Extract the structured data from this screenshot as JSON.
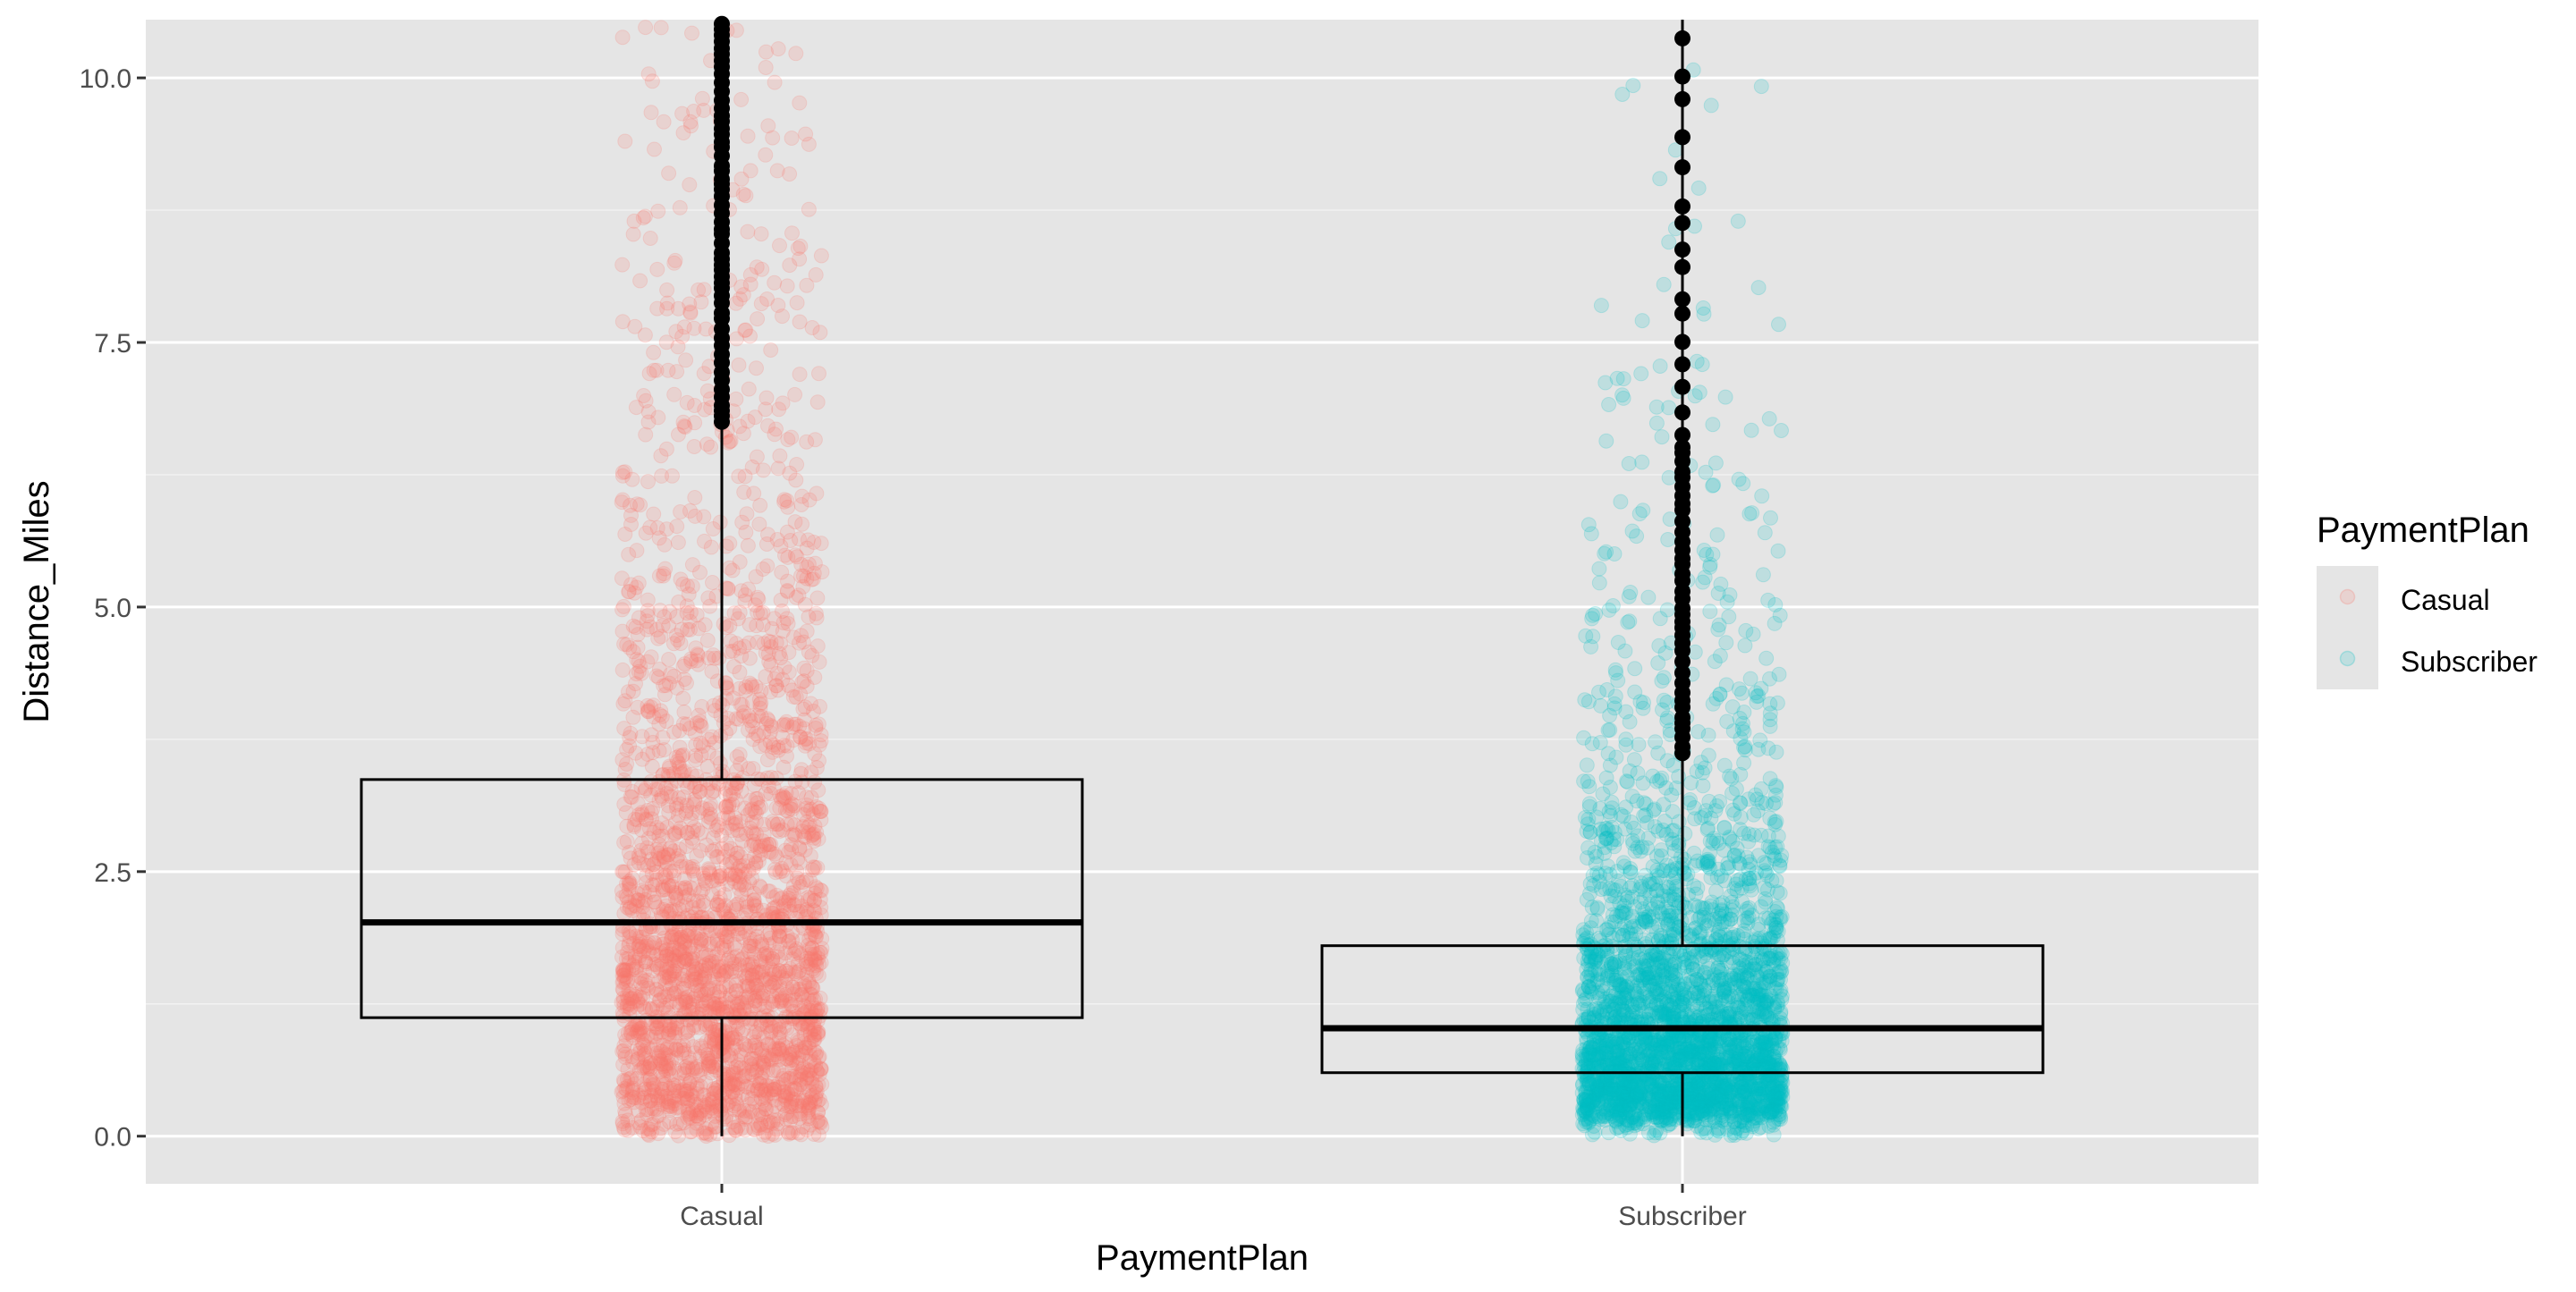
{
  "chart_data": {
    "type": "boxplot",
    "xlabel": "PaymentPlan",
    "ylabel": "Distance_Miles",
    "ylim": [
      -0.45,
      10.55
    ],
    "yticks": [
      {
        "value": 0.0,
        "label": "0.0"
      },
      {
        "value": 2.5,
        "label": "2.5"
      },
      {
        "value": 5.0,
        "label": "5.0"
      },
      {
        "value": 7.5,
        "label": "7.5"
      },
      {
        "value": 10.0,
        "label": "10.0"
      }
    ],
    "yminor": [
      1.25,
      3.75,
      6.25,
      8.75
    ],
    "categories": [
      "Casual",
      "Subscriber"
    ],
    "groups": [
      {
        "name": "Casual",
        "color": "#F8766D",
        "whisker_low": 0.0,
        "q1": 1.12,
        "median": 2.02,
        "q3": 3.37,
        "whisker_high": 6.75,
        "outlier_min": 6.75,
        "point_density": 1.0
      },
      {
        "name": "Subscriber",
        "color": "#00BFC4",
        "whisker_low": 0.0,
        "q1": 0.6,
        "median": 1.02,
        "q3": 1.8,
        "whisker_high": 3.62,
        "outlier_min": 3.62,
        "point_density": 1.0
      }
    ],
    "grid": true,
    "legend": {
      "title": "PaymentPlan",
      "placement": "right",
      "entries": [
        "Casual",
        "Subscriber"
      ]
    }
  }
}
